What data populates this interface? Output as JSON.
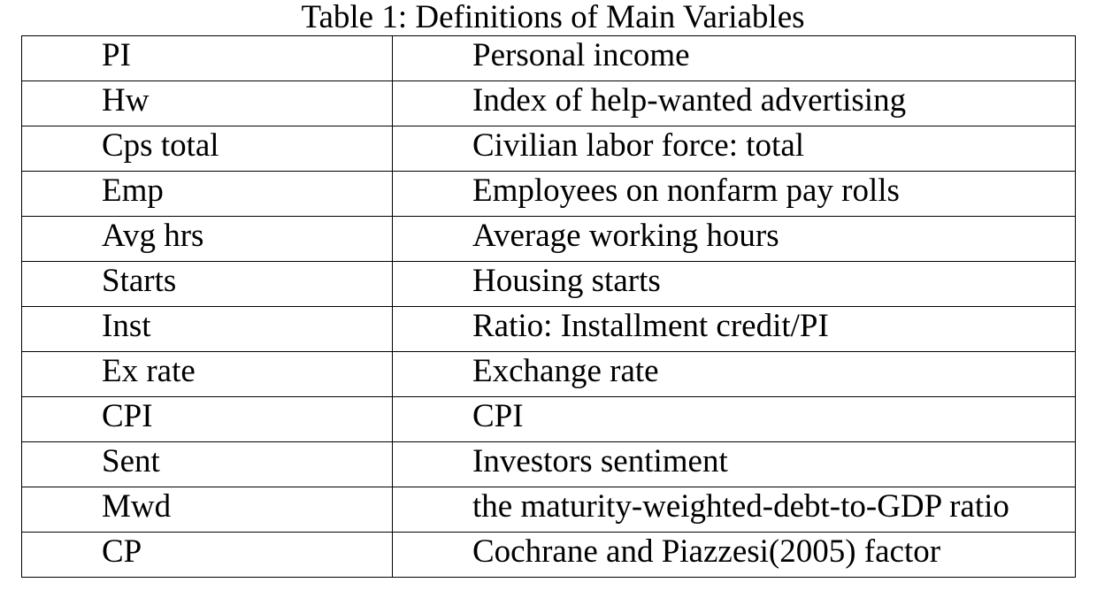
{
  "table": {
    "caption": "Table 1: Definitions of Main Variables",
    "rows": [
      {
        "variable": "PI",
        "definition": "Personal income"
      },
      {
        "variable": "Hw",
        "definition": "Index of help-wanted advertising"
      },
      {
        "variable": "Cps total",
        "definition": "Civilian labor force: total"
      },
      {
        "variable": "Emp",
        "definition": "Employees on nonfarm pay rolls"
      },
      {
        "variable": "Avg hrs",
        "definition": "Average working hours"
      },
      {
        "variable": "Starts",
        "definition": "Housing starts"
      },
      {
        "variable": "Inst",
        "definition": "Ratio: Installment credit/PI"
      },
      {
        "variable": "Ex rate",
        "definition": "Exchange rate"
      },
      {
        "variable": "CPI",
        "definition": "CPI"
      },
      {
        "variable": "Sent",
        "definition": "Investors sentiment"
      },
      {
        "variable": "Mwd",
        "definition": "the maturity-weighted-debt-to-GDP ratio"
      },
      {
        "variable": "CP",
        "definition": "Cochrane and Piazzesi(2005) factor"
      }
    ]
  }
}
